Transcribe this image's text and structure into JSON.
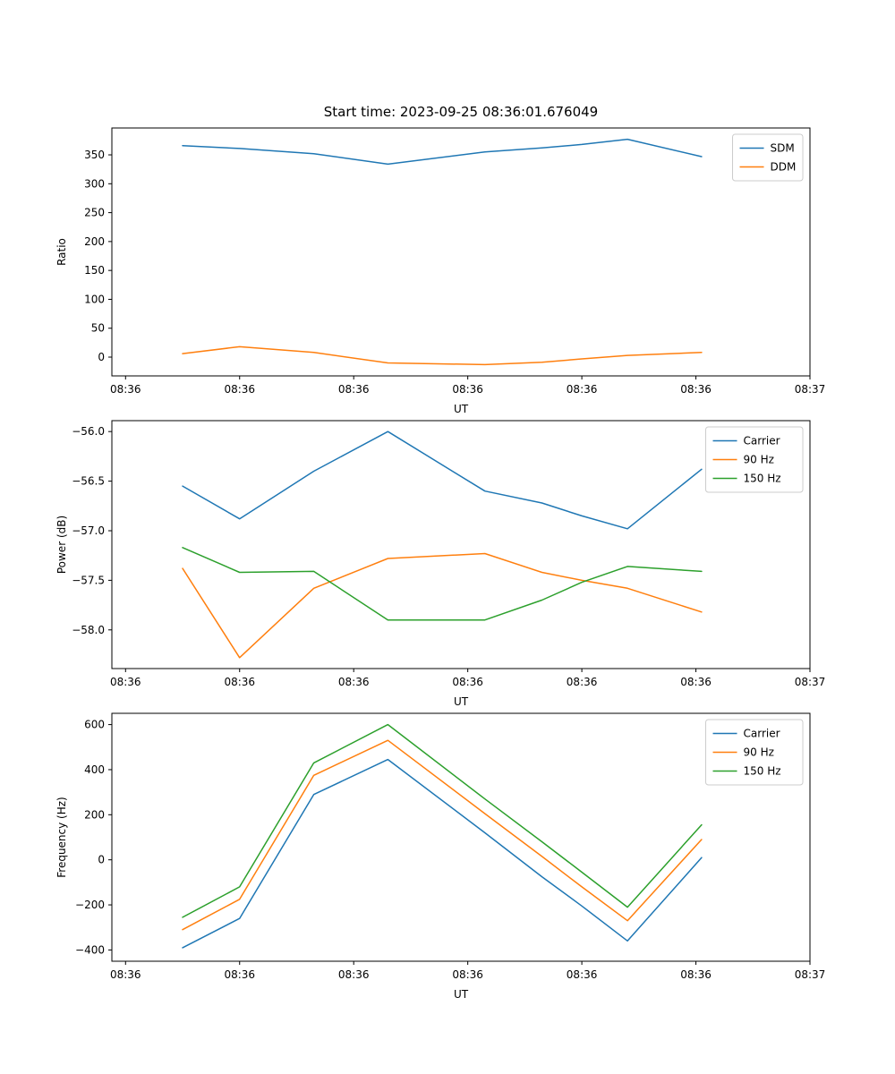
{
  "figure": {
    "title": "Start time: 2023-09-25 08:36:01.676049",
    "background_color": "#ffffff",
    "axes_color": "#000000",
    "legend_border_color": "#cccccc"
  },
  "chart_data": [
    {
      "type": "line",
      "name": "ratio",
      "title": "Start time: 2023-09-25 08:36:01.676049",
      "xlabel": "UT",
      "ylabel": "Ratio",
      "x_seconds": [
        5,
        10,
        16.5,
        23,
        31.5,
        36.5,
        40,
        44,
        50.5
      ],
      "xlim": [
        -1.2,
        60
      ],
      "ylim": [
        -32.5,
        396.5
      ],
      "grid": false,
      "legend_position": "upper right",
      "xticks": {
        "values": [
          0,
          10,
          20,
          30,
          40,
          50,
          60
        ],
        "labels": [
          "08:36",
          "08:36",
          "08:36",
          "08:36",
          "08:36",
          "08:36",
          "08:37"
        ]
      },
      "yticks": {
        "values": [
          0,
          50,
          100,
          150,
          200,
          250,
          300,
          350
        ],
        "labels": [
          "0",
          "50",
          "100",
          "150",
          "200",
          "250",
          "300",
          "350"
        ]
      },
      "series": [
        {
          "name": "SDM",
          "color": "#1f77b4",
          "values": [
            366,
            361,
            352,
            334,
            355,
            362,
            368,
            377,
            347
          ]
        },
        {
          "name": "DDM",
          "color": "#ff7f0e",
          "values": [
            6,
            18,
            8,
            -10,
            -13,
            -9,
            -3,
            3,
            8
          ]
        }
      ]
    },
    {
      "type": "line",
      "name": "power",
      "title": "",
      "xlabel": "UT",
      "ylabel": "Power (dB)",
      "x_seconds": [
        5,
        10,
        16.5,
        23,
        31.5,
        36.5,
        40,
        44,
        50.5
      ],
      "xlim": [
        -1.2,
        60
      ],
      "ylim": [
        -58.39,
        -55.89
      ],
      "grid": false,
      "legend_position": "upper right",
      "xticks": {
        "values": [
          0,
          10,
          20,
          30,
          40,
          50,
          60
        ],
        "labels": [
          "08:36",
          "08:36",
          "08:36",
          "08:36",
          "08:36",
          "08:36",
          "08:37"
        ]
      },
      "yticks": {
        "values": [
          -56.0,
          -56.5,
          -57.0,
          -57.5,
          -58.0
        ],
        "labels": [
          "−56.0",
          "−56.5",
          "−57.0",
          "−57.5",
          "−58.0"
        ]
      },
      "series": [
        {
          "name": "Carrier",
          "color": "#1f77b4",
          "values": [
            -56.55,
            -56.88,
            -56.4,
            -56.0,
            -56.6,
            -56.72,
            -56.85,
            -56.98,
            -56.38
          ]
        },
        {
          "name": "90 Hz",
          "color": "#ff7f0e",
          "values": [
            -57.38,
            -58.28,
            -57.58,
            -57.28,
            -57.23,
            -57.42,
            -57.5,
            -57.58,
            -57.82
          ]
        },
        {
          "name": "150 Hz",
          "color": "#2ca02c",
          "values": [
            -57.17,
            -57.42,
            -57.41,
            -57.9,
            -57.9,
            -57.7,
            -57.52,
            -57.36,
            -57.41
          ]
        }
      ]
    },
    {
      "type": "line",
      "name": "frequency",
      "title": "",
      "xlabel": "UT",
      "ylabel": "Frequency (Hz)",
      "x_seconds": [
        5,
        10,
        16.5,
        23,
        31.5,
        36.5,
        40,
        44,
        50.5
      ],
      "xlim": [
        -1.2,
        60
      ],
      "ylim": [
        -450,
        650
      ],
      "grid": false,
      "legend_position": "upper right",
      "xticks": {
        "values": [
          0,
          10,
          20,
          30,
          40,
          50,
          60
        ],
        "labels": [
          "08:36",
          "08:36",
          "08:36",
          "08:36",
          "08:36",
          "08:36",
          "08:37"
        ]
      },
      "yticks": {
        "values": [
          -400,
          -200,
          0,
          200,
          400,
          600
        ],
        "labels": [
          "−400",
          "−200",
          "0",
          "200",
          "400",
          "600"
        ]
      },
      "series": [
        {
          "name": "Carrier",
          "color": "#1f77b4",
          "values": [
            -390,
            -260,
            290,
            445,
            120,
            -75,
            -205,
            -360,
            10
          ]
        },
        {
          "name": "90 Hz",
          "color": "#ff7f0e",
          "values": [
            -310,
            -175,
            375,
            530,
            205,
            15,
            -120,
            -270,
            90
          ]
        },
        {
          "name": "150 Hz",
          "color": "#2ca02c",
          "values": [
            -255,
            -120,
            430,
            600,
            270,
            80,
            -55,
            -210,
            155
          ]
        }
      ]
    }
  ]
}
